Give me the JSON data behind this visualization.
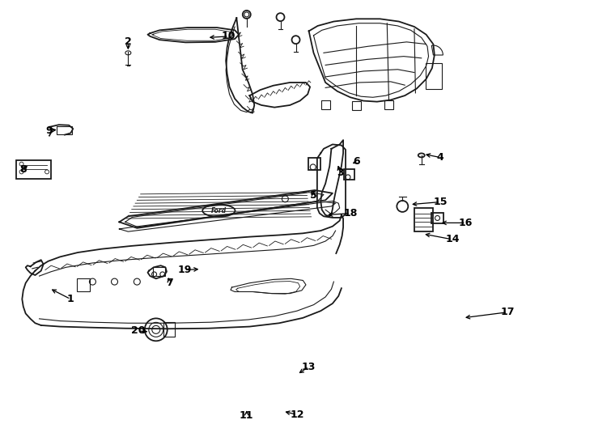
{
  "background_color": "#ffffff",
  "line_color": "#1a1a1a",
  "fig_width": 7.34,
  "fig_height": 5.4,
  "dpi": 100,
  "annotations": [
    [
      "1",
      [
        0.118,
        0.685
      ],
      [
        0.082,
        0.66
      ]
    ],
    [
      "2",
      [
        0.215,
        0.095
      ],
      [
        0.215,
        0.118
      ]
    ],
    [
      "3",
      [
        0.573,
        0.395
      ],
      [
        0.568,
        0.373
      ]
    ],
    [
      "4",
      [
        0.742,
        0.36
      ],
      [
        0.713,
        0.352
      ]
    ],
    [
      "5",
      [
        0.528,
        0.448
      ],
      [
        0.528,
        0.432
      ]
    ],
    [
      "6",
      [
        0.6,
        0.37
      ],
      [
        0.59,
        0.376
      ]
    ],
    [
      "7",
      [
        0.285,
        0.648
      ],
      [
        0.282,
        0.63
      ]
    ],
    [
      "8",
      [
        0.038,
        0.388
      ],
      [
        0.048,
        0.375
      ]
    ],
    [
      "9",
      [
        0.082,
        0.298
      ],
      [
        0.098,
        0.296
      ]
    ],
    [
      "10",
      [
        0.385,
        0.082
      ],
      [
        0.348,
        0.085
      ]
    ],
    [
      "11",
      [
        0.415,
        0.952
      ],
      [
        0.415,
        0.935
      ]
    ],
    [
      "12",
      [
        0.5,
        0.95
      ],
      [
        0.476,
        0.942
      ]
    ],
    [
      "13",
      [
        0.52,
        0.84
      ],
      [
        0.5,
        0.858
      ]
    ],
    [
      "14",
      [
        0.762,
        0.548
      ],
      [
        0.712,
        0.535
      ]
    ],
    [
      "15",
      [
        0.742,
        0.462
      ],
      [
        0.69,
        0.468
      ]
    ],
    [
      "16",
      [
        0.785,
        0.51
      ],
      [
        0.74,
        0.51
      ]
    ],
    [
      "17",
      [
        0.855,
        0.715
      ],
      [
        0.78,
        0.728
      ]
    ],
    [
      "18",
      [
        0.59,
        0.488
      ],
      [
        0.548,
        0.492
      ]
    ],
    [
      "19",
      [
        0.31,
        0.618
      ],
      [
        0.338,
        0.616
      ]
    ],
    [
      "20",
      [
        0.232,
        0.758
      ],
      [
        0.252,
        0.76
      ]
    ]
  ]
}
